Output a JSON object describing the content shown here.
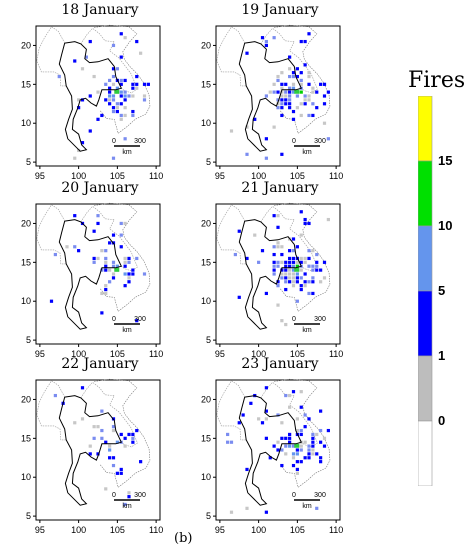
{
  "figure": {
    "caption": "(b)",
    "legend": {
      "title": "Fires",
      "ticks": [
        "15",
        "10",
        "5",
        "1",
        "0"
      ],
      "colors": [
        "#ffff00",
        "#00e000",
        "#6495ed",
        "#0000ff",
        "#bdbdbd",
        "#ffffff"
      ]
    },
    "axes": {
      "x_ticks": [
        "95",
        "100",
        "105",
        "110"
      ],
      "y_ticks": [
        "20",
        "15",
        "10",
        "5"
      ]
    },
    "scale_bar": {
      "labels": [
        "0",
        "300"
      ],
      "unit": "km"
    },
    "panels": [
      {
        "title": "18 January"
      },
      {
        "title": "19 January"
      },
      {
        "title": "20 January"
      },
      {
        "title": "21 January"
      },
      {
        "title": "22 January"
      },
      {
        "title": "23 January"
      }
    ]
  }
}
